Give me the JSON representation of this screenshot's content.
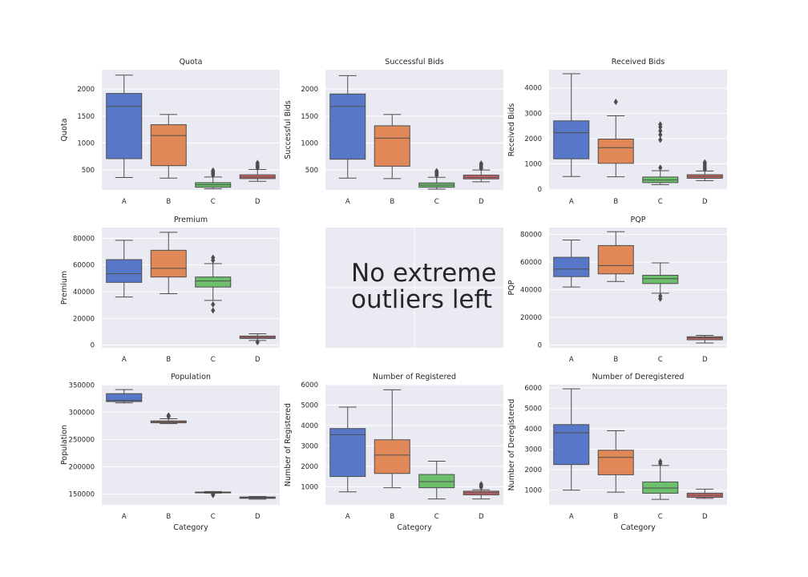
{
  "colors": {
    "panel_bg": "#EAEAF2",
    "grid": "#FFFFFF",
    "line": "#4D4D4D",
    "A": "#5778C9",
    "B": "#E08858",
    "C": "#6CC06C",
    "D": "#CC6666"
  },
  "empty_panel": {
    "text_line1": "No extreme",
    "text_line2": "outliers left"
  },
  "chart_data": [
    {
      "type": "box",
      "title": "Quota",
      "xlabel": "",
      "ylabel": "Quota",
      "categories": [
        "A",
        "B",
        "C",
        "D"
      ],
      "ylim": [
        130,
        2360
      ],
      "yticks": [
        500,
        1000,
        1500,
        2000
      ],
      "grid": true,
      "boxes": [
        {
          "category": "A",
          "whisker_low": 360,
          "q1": 710,
          "median": 1680,
          "q3": 1920,
          "whisker_high": 2260,
          "outliers": []
        },
        {
          "category": "B",
          "whisker_low": 350,
          "q1": 580,
          "median": 1140,
          "q3": 1340,
          "whisker_high": 1530,
          "outliers": []
        },
        {
          "category": "C",
          "whisker_low": 150,
          "q1": 180,
          "median": 225,
          "q3": 265,
          "whisker_high": 370,
          "outliers": [
            405,
            435,
            460,
            490
          ]
        },
        {
          "category": "D",
          "whisker_low": 290,
          "q1": 340,
          "median": 370,
          "q3": 410,
          "whisker_high": 510,
          "outliers": [
            540,
            565,
            595,
            630
          ]
        }
      ]
    },
    {
      "type": "box",
      "title": "Successful Bids",
      "xlabel": "",
      "ylabel": "Successful Bids",
      "categories": [
        "A",
        "B",
        "C",
        "D"
      ],
      "ylim": [
        130,
        2360
      ],
      "yticks": [
        500,
        1000,
        1500,
        2000
      ],
      "grid": true,
      "boxes": [
        {
          "category": "A",
          "whisker_low": 350,
          "q1": 700,
          "median": 1680,
          "q3": 1910,
          "whisker_high": 2250,
          "outliers": []
        },
        {
          "category": "B",
          "whisker_low": 340,
          "q1": 570,
          "median": 1090,
          "q3": 1320,
          "whisker_high": 1530,
          "outliers": []
        },
        {
          "category": "C",
          "whisker_low": 145,
          "q1": 180,
          "median": 220,
          "q3": 260,
          "whisker_high": 365,
          "outliers": [
            400,
            430,
            455,
            480
          ]
        },
        {
          "category": "D",
          "whisker_low": 280,
          "q1": 335,
          "median": 365,
          "q3": 405,
          "whisker_high": 500,
          "outliers": [
            530,
            560,
            590,
            620
          ]
        }
      ]
    },
    {
      "type": "box",
      "title": "Received Bids",
      "xlabel": "",
      "ylabel": "Received Bids",
      "categories": [
        "A",
        "B",
        "C",
        "D"
      ],
      "ylim": [
        -30,
        4720
      ],
      "yticks": [
        0,
        1000,
        2000,
        3000,
        4000
      ],
      "grid": true,
      "boxes": [
        {
          "category": "A",
          "whisker_low": 500,
          "q1": 1200,
          "median": 2230,
          "q3": 2700,
          "whisker_high": 4560,
          "outliers": []
        },
        {
          "category": "B",
          "whisker_low": 490,
          "q1": 1020,
          "median": 1640,
          "q3": 1980,
          "whisker_high": 2900,
          "outliers": [
            3450
          ]
        },
        {
          "category": "C",
          "whisker_low": 180,
          "q1": 260,
          "median": 360,
          "q3": 480,
          "whisker_high": 730,
          "outliers": [
            850,
            1950,
            2150,
            2300,
            2450,
            2560
          ]
        },
        {
          "category": "D",
          "whisker_low": 340,
          "q1": 430,
          "median": 500,
          "q3": 570,
          "whisker_high": 720,
          "outliers": [
            780,
            850,
            920,
            990,
            1060
          ]
        }
      ]
    },
    {
      "type": "box",
      "title": "Premium",
      "xlabel": "",
      "ylabel": "Premium",
      "categories": [
        "A",
        "B",
        "C",
        "D"
      ],
      "ylim": [
        -2000,
        88000
      ],
      "yticks": [
        0,
        20000,
        40000,
        60000,
        80000
      ],
      "grid": true,
      "boxes": [
        {
          "category": "A",
          "whisker_low": 36000,
          "q1": 47000,
          "median": 53500,
          "q3": 64000,
          "whisker_high": 78500,
          "outliers": []
        },
        {
          "category": "B",
          "whisker_low": 38500,
          "q1": 51000,
          "median": 57500,
          "q3": 71000,
          "whisker_high": 84500,
          "outliers": []
        },
        {
          "category": "C",
          "whisker_low": 33500,
          "q1": 43500,
          "median": 48000,
          "q3": 51000,
          "whisker_high": 61000,
          "outliers": [
            26000,
            30500,
            63500,
            65500
          ]
        },
        {
          "category": "D",
          "whisker_low": 3500,
          "q1": 5000,
          "median": 5800,
          "q3": 6800,
          "whisker_high": 8500,
          "outliers": [
            2200
          ]
        }
      ]
    },
    null,
    {
      "type": "box",
      "title": "PQP",
      "xlabel": "",
      "ylabel": "PQP",
      "categories": [
        "A",
        "B",
        "C",
        "D"
      ],
      "ylim": [
        -2000,
        85000
      ],
      "yticks": [
        0,
        20000,
        40000,
        60000,
        80000
      ],
      "grid": true,
      "boxes": [
        {
          "category": "A",
          "whisker_low": 42000,
          "q1": 49500,
          "median": 55000,
          "q3": 63500,
          "whisker_high": 76000,
          "outliers": []
        },
        {
          "category": "B",
          "whisker_low": 46000,
          "q1": 51500,
          "median": 57500,
          "q3": 72000,
          "whisker_high": 82000,
          "outliers": []
        },
        {
          "category": "C",
          "whisker_low": 37500,
          "q1": 44500,
          "median": 48000,
          "q3": 50500,
          "whisker_high": 59500,
          "outliers": [
            33500,
            35500
          ]
        },
        {
          "category": "D",
          "whisker_low": 1500,
          "q1": 3800,
          "median": 5200,
          "q3": 6000,
          "whisker_high": 7000,
          "outliers": []
        }
      ]
    },
    {
      "type": "box",
      "title": "Population",
      "xlabel": "Category",
      "ylabel": "Population",
      "categories": [
        "A",
        "B",
        "C",
        "D"
      ],
      "ylim": [
        130000,
        350500
      ],
      "yticks": [
        150000,
        200000,
        250000,
        300000,
        350000
      ],
      "grid": true,
      "boxes": [
        {
          "category": "A",
          "whisker_low": 317000,
          "q1": 319500,
          "median": 321500,
          "q3": 334000,
          "whisker_high": 341500,
          "outliers": []
        },
        {
          "category": "B",
          "whisker_low": 279000,
          "q1": 280500,
          "median": 282500,
          "q3": 284000,
          "whisker_high": 288000,
          "outliers": [
            292000,
            294000
          ]
        },
        {
          "category": "C",
          "whisker_low": 151500,
          "q1": 152500,
          "median": 153000,
          "q3": 153500,
          "whisker_high": 154500,
          "outliers": [
            148000,
            150000
          ]
        },
        {
          "category": "D",
          "whisker_low": 140500,
          "q1": 142000,
          "median": 143000,
          "q3": 144500,
          "whisker_high": 145500,
          "outliers": []
        }
      ]
    },
    {
      "type": "box",
      "title": "Number of Registered",
      "xlabel": "Category",
      "ylabel": "Number of Registered",
      "categories": [
        "A",
        "B",
        "C",
        "D"
      ],
      "ylim": [
        110,
        6000
      ],
      "yticks": [
        1000,
        2000,
        3000,
        4000,
        5000,
        6000
      ],
      "grid": true,
      "boxes": [
        {
          "category": "A",
          "whisker_low": 750,
          "q1": 1500,
          "median": 3550,
          "q3": 3850,
          "whisker_high": 4900,
          "outliers": []
        },
        {
          "category": "B",
          "whisker_low": 950,
          "q1": 1650,
          "median": 2550,
          "q3": 3300,
          "whisker_high": 5750,
          "outliers": []
        },
        {
          "category": "C",
          "whisker_low": 400,
          "q1": 950,
          "median": 1250,
          "q3": 1600,
          "whisker_high": 2250,
          "outliers": []
        },
        {
          "category": "D",
          "whisker_low": 400,
          "q1": 600,
          "median": 700,
          "q3": 780,
          "whisker_high": 850,
          "outliers": [
            980,
            1050,
            1120
          ]
        }
      ]
    },
    {
      "type": "box",
      "title": "Number of Deregistered",
      "xlabel": "Category",
      "ylabel": "Number of Deregistered",
      "categories": [
        "A",
        "B",
        "C",
        "D"
      ],
      "ylim": [
        280,
        6150
      ],
      "yticks": [
        1000,
        2000,
        3000,
        4000,
        5000,
        6000
      ],
      "grid": true,
      "boxes": [
        {
          "category": "A",
          "whisker_low": 1000,
          "q1": 2250,
          "median": 3800,
          "q3": 4200,
          "whisker_high": 5950,
          "outliers": []
        },
        {
          "category": "B",
          "whisker_low": 900,
          "q1": 1750,
          "median": 2600,
          "q3": 2950,
          "whisker_high": 3900,
          "outliers": []
        },
        {
          "category": "C",
          "whisker_low": 550,
          "q1": 850,
          "median": 1100,
          "q3": 1400,
          "whisker_high": 2200,
          "outliers": [
            2300,
            2400
          ]
        },
        {
          "category": "D",
          "whisker_low": 600,
          "q1": 650,
          "median": 750,
          "q3": 850,
          "whisker_high": 1050,
          "outliers": []
        }
      ]
    }
  ]
}
